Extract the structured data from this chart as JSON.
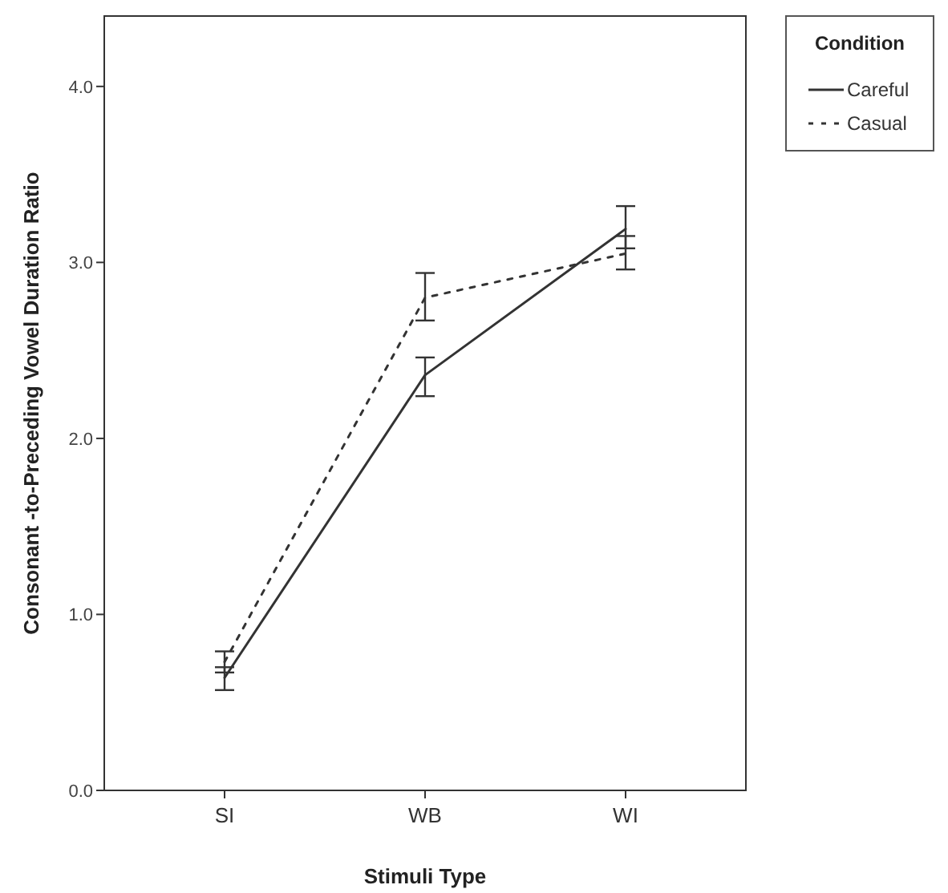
{
  "chart_data": {
    "type": "line",
    "xlabel": "Stimuli Type",
    "ylabel": "Consonant -to-Preceding Vowel Duration Ratio",
    "legend_title": "Condition",
    "categories": [
      "SI",
      "WB",
      "WI"
    ],
    "series": [
      {
        "name": "Careful",
        "color": "#333333",
        "line_style": "solid",
        "values": [
          0.64,
          2.36,
          3.19
        ],
        "errors": [
          [
            0.57,
            0.7
          ],
          [
            2.24,
            2.46
          ],
          [
            3.08,
            3.32
          ]
        ]
      },
      {
        "name": "Casual",
        "color": "#333333",
        "line_style": "dotted",
        "values": [
          0.73,
          2.8,
          3.05
        ],
        "errors": [
          [
            0.67,
            0.79
          ],
          [
            2.67,
            2.94
          ],
          [
            2.96,
            3.15
          ]
        ]
      }
    ],
    "ylim": [
      0,
      4.4
    ],
    "yticks": [
      {
        "value": 0,
        "label": "0.0"
      },
      {
        "value": 1,
        "label": "1.0"
      },
      {
        "value": 2,
        "label": "2.0"
      },
      {
        "value": 3,
        "label": "3.0"
      },
      {
        "value": 4,
        "label": "4.0"
      }
    ],
    "grid": false,
    "legend": "top right",
    "marker": "none"
  }
}
